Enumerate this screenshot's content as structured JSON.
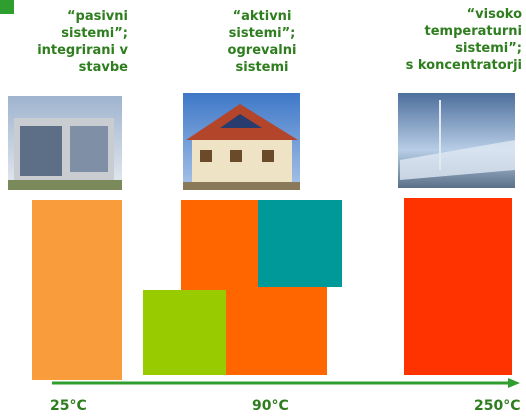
{
  "columns": [
    {
      "heading": [
        "“pasivni",
        "sistemi”;",
        "integrirani v",
        "stavbe"
      ],
      "temperature": "25°C"
    },
    {
      "heading": [
        "“aktivni",
        "sistemi”;",
        "ogrevalni",
        "sistemi"
      ],
      "temperature": "90°C"
    },
    {
      "heading": [
        "“visoko",
        "temperaturni",
        "sistemi”;",
        "s koncentratorji"
      ],
      "temperature": "250°C"
    }
  ]
}
